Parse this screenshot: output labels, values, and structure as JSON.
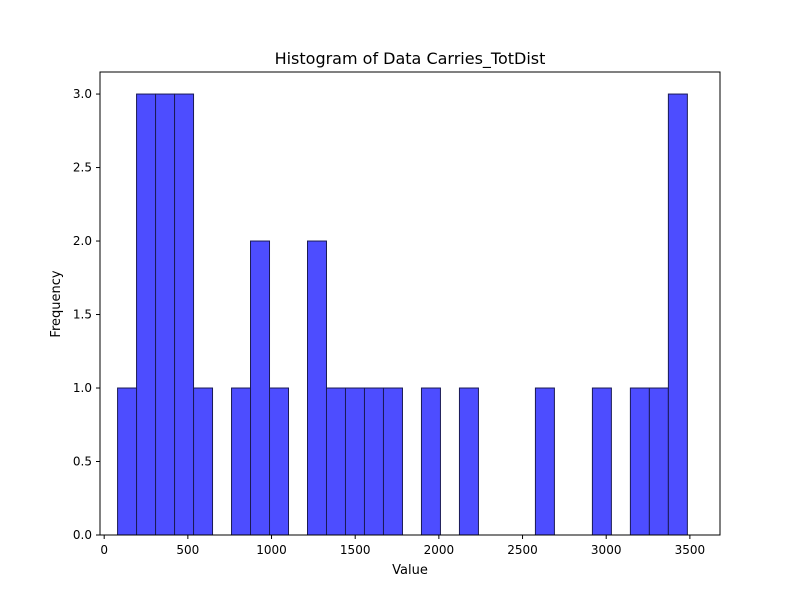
{
  "chart_data": {
    "type": "bar",
    "title": "Histogram of Data Carries_TotDist",
    "xlabel": "Value",
    "ylabel": "Frequency",
    "xlim": [
      -25,
      3680
    ],
    "ylim": [
      0,
      3.15
    ],
    "bin_width": 113.5,
    "bins": [
      {
        "x0": 80.0,
        "count": 1
      },
      {
        "x0": 193.5,
        "count": 3
      },
      {
        "x0": 307.0,
        "count": 3
      },
      {
        "x0": 420.5,
        "count": 3
      },
      {
        "x0": 534.0,
        "count": 1
      },
      {
        "x0": 647.5,
        "count": 0
      },
      {
        "x0": 761.0,
        "count": 1
      },
      {
        "x0": 874.5,
        "count": 2
      },
      {
        "x0": 988.0,
        "count": 1
      },
      {
        "x0": 1101.5,
        "count": 0
      },
      {
        "x0": 1215.0,
        "count": 2
      },
      {
        "x0": 1328.5,
        "count": 1
      },
      {
        "x0": 1442.0,
        "count": 1
      },
      {
        "x0": 1555.5,
        "count": 1
      },
      {
        "x0": 1669.0,
        "count": 1
      },
      {
        "x0": 1782.5,
        "count": 0
      },
      {
        "x0": 1896.0,
        "count": 1
      },
      {
        "x0": 2009.5,
        "count": 0
      },
      {
        "x0": 2123.0,
        "count": 1
      },
      {
        "x0": 2236.5,
        "count": 0
      },
      {
        "x0": 2350.0,
        "count": 0
      },
      {
        "x0": 2463.5,
        "count": 0
      },
      {
        "x0": 2577.0,
        "count": 1
      },
      {
        "x0": 2690.5,
        "count": 0
      },
      {
        "x0": 2804.0,
        "count": 0
      },
      {
        "x0": 2917.5,
        "count": 1
      },
      {
        "x0": 3031.0,
        "count": 0
      },
      {
        "x0": 3144.5,
        "count": 1
      },
      {
        "x0": 3258.0,
        "count": 1
      },
      {
        "x0": 3371.5,
        "count": 3
      }
    ],
    "xticks": [
      0,
      500,
      1000,
      1500,
      2000,
      2500,
      3000,
      3500
    ],
    "xtick_labels": [
      "0",
      "500",
      "1000",
      "1500",
      "2000",
      "2500",
      "3000",
      "3500"
    ],
    "yticks": [
      0.0,
      0.5,
      1.0,
      1.5,
      2.0,
      2.5,
      3.0
    ],
    "ytick_labels": [
      "0.0",
      "0.5",
      "1.0",
      "1.5",
      "2.0",
      "2.5",
      "3.0"
    ],
    "grid": false,
    "colors": {
      "bar_fill": "#4d4dff",
      "bar_edge": "#1a1a55",
      "axis": "#000000",
      "background": "#ffffff"
    }
  }
}
